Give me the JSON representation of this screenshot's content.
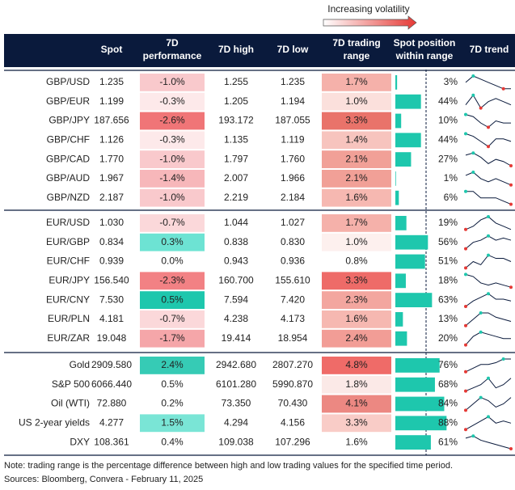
{
  "legend": {
    "label": "Increasing volatility"
  },
  "header": {
    "columns": [
      [
        "Spot"
      ],
      [
        "7D",
        "performance"
      ],
      [
        "7D high"
      ],
      [
        "7D low"
      ],
      [
        "7D trading",
        "range"
      ],
      [
        "Spot position",
        "within range"
      ],
      [
        "7D trend"
      ]
    ]
  },
  "groups": [
    {
      "rows": [
        {
          "name": "GBP/USD",
          "spot": "1.235",
          "perf": "-1.0%",
          "perf_color": "#f9c9cc",
          "high": "1.255",
          "low": "1.235",
          "range": "1.7%",
          "range_color": "#f5b1aa",
          "position": {
            "value": 3,
            "label": "3%"
          },
          "trend": [
            6,
            8,
            7,
            6,
            5,
            4,
            4
          ]
        },
        {
          "name": "GBP/EUR",
          "spot": "1.199",
          "perf": "-0.3%",
          "perf_color": "#fde9ea",
          "high": "1.205",
          "low": "1.194",
          "range": "1.0%",
          "range_color": "#fbe0dc",
          "position": {
            "value": 44,
            "label": "44%"
          },
          "trend": [
            3,
            6,
            2,
            4,
            5,
            4,
            3
          ]
        },
        {
          "name": "GBP/JPY",
          "spot": "187.656",
          "perf": "-2.6%",
          "perf_color": "#f07577",
          "high": "193.172",
          "low": "187.055",
          "range": "3.3%",
          "range_color": "#e9736a",
          "position": {
            "value": 10,
            "label": "10%"
          },
          "trend": [
            7,
            6,
            3,
            1,
            4,
            3,
            3
          ]
        },
        {
          "name": "GBP/CHF",
          "spot": "1.126",
          "perf": "-0.3%",
          "perf_color": "#fde9ea",
          "high": "1.135",
          "low": "1.119",
          "range": "1.4%",
          "range_color": "#f7c4be",
          "position": {
            "value": 44,
            "label": "44%"
          },
          "trend": [
            6,
            5,
            3,
            1,
            4,
            4,
            3
          ]
        },
        {
          "name": "GBP/CAD",
          "spot": "1.770",
          "perf": "-1.0%",
          "perf_color": "#f9c9cc",
          "high": "1.797",
          "low": "1.760",
          "range": "2.1%",
          "range_color": "#f1a097",
          "position": {
            "value": 27,
            "label": "27%"
          },
          "trend": [
            7,
            8,
            6,
            3,
            5,
            4,
            2
          ]
        },
        {
          "name": "GBP/AUD",
          "spot": "1.967",
          "perf": "-1.4%",
          "perf_color": "#f7b7ba",
          "high": "2.007",
          "low": "1.966",
          "range": "2.1%",
          "range_color": "#f1a097",
          "position": {
            "value": 1,
            "label": "1%"
          },
          "trend": [
            7,
            8,
            6,
            5,
            6,
            5,
            4
          ]
        },
        {
          "name": "GBP/NZD",
          "spot": "2.187",
          "perf": "-1.0%",
          "perf_color": "#f9c9cc",
          "high": "2.219",
          "low": "2.184",
          "range": "1.6%",
          "range_color": "#f6b8b1",
          "position": {
            "value": 6,
            "label": "6%"
          },
          "trend": [
            8,
            8,
            6,
            6,
            6,
            5,
            4
          ]
        }
      ]
    },
    {
      "rows": [
        {
          "name": "EUR/USD",
          "spot": "1.030",
          "perf": "-0.7%",
          "perf_color": "#fbd8da",
          "high": "1.044",
          "low": "1.027",
          "range": "1.7%",
          "range_color": "#f5b1aa",
          "position": {
            "value": 19,
            "label": "19%"
          },
          "trend": [
            4,
            5,
            7,
            8,
            6,
            5,
            4
          ]
        },
        {
          "name": "EUR/GBP",
          "spot": "0.834",
          "perf": "0.3%",
          "perf_color": "#6de3d3",
          "high": "0.838",
          "low": "0.830",
          "range": "1.0%",
          "range_color": "#fdf0ee",
          "position": {
            "value": 56,
            "label": "56%"
          },
          "trend": [
            2,
            5,
            6,
            8,
            6,
            7,
            6
          ]
        },
        {
          "name": "EUR/CHF",
          "spot": "0.939",
          "perf": "0.0%",
          "perf_color": "#ffffff",
          "high": "0.943",
          "low": "0.936",
          "range": "0.8%",
          "range_color": "#ffffff",
          "position": {
            "value": 51,
            "label": "51%"
          },
          "trend": [
            3,
            5,
            4,
            7,
            6,
            6,
            5
          ]
        },
        {
          "name": "EUR/JPY",
          "spot": "156.540",
          "perf": "-2.3%",
          "perf_color": "#f28184",
          "high": "160.700",
          "low": "155.610",
          "range": "3.3%",
          "range_color": "#ee6b68",
          "position": {
            "value": 18,
            "label": "18%"
          },
          "trend": [
            8,
            7,
            4,
            3,
            4,
            3,
            2
          ]
        },
        {
          "name": "EUR/CNY",
          "spot": "7.530",
          "perf": "0.5%",
          "perf_color": "#1ec7ad",
          "high": "7.594",
          "low": "7.420",
          "range": "2.3%",
          "range_color": "#f3a69f",
          "position": {
            "value": 63,
            "label": "63%"
          },
          "trend": [
            2,
            5,
            7,
            9,
            6,
            6,
            5
          ]
        },
        {
          "name": "EUR/PLN",
          "spot": "4.181",
          "perf": "-0.7%",
          "perf_color": "#fbd8da",
          "high": "4.238",
          "low": "4.173",
          "range": "1.6%",
          "range_color": "#f6b8b1",
          "position": {
            "value": 13,
            "label": "13%"
          },
          "trend": [
            2,
            5,
            8,
            8,
            6,
            5,
            4
          ]
        },
        {
          "name": "EUR/ZAR",
          "spot": "19.048",
          "perf": "-1.7%",
          "perf_color": "#f5a6a9",
          "high": "19.414",
          "low": "18.954",
          "range": "2.4%",
          "range_color": "#f29d96",
          "position": {
            "value": 20,
            "label": "20%"
          },
          "trend": [
            2,
            6,
            8,
            7,
            6,
            5,
            5
          ]
        }
      ]
    },
    {
      "rows": [
        {
          "name": "Gold",
          "spot": "2909.580",
          "perf": "2.4%",
          "perf_color": "#36cbb5",
          "high": "2942.680",
          "low": "2807.270",
          "range": "4.8%",
          "range_color": "#ef6b68",
          "position": {
            "value": 76,
            "label": "76%"
          },
          "trend": [
            2,
            4,
            6,
            6,
            7,
            9,
            9
          ]
        },
        {
          "name": "S&P 500",
          "spot": "6066.440",
          "perf": "0.5%",
          "perf_color": "#ffffff",
          "high": "6101.280",
          "low": "5990.870",
          "range": "1.8%",
          "range_color": "#fbe9e7",
          "position": {
            "value": 68,
            "label": "68%"
          },
          "trend": [
            3,
            4,
            5,
            7,
            4,
            5,
            7
          ]
        },
        {
          "name": "Oil (WTI)",
          "spot": "72.880",
          "perf": "0.2%",
          "perf_color": "#ffffff",
          "high": "73.350",
          "low": "70.430",
          "range": "4.1%",
          "range_color": "#ec8882",
          "position": {
            "value": 84,
            "label": "84%"
          },
          "trend": [
            3,
            5,
            7,
            6,
            4,
            5,
            7
          ]
        },
        {
          "name": "US 2-year yields",
          "spot": "4.277",
          "perf": "1.5%",
          "perf_color": "#7ae5d6",
          "high": "4.294",
          "low": "4.156",
          "range": "3.3%",
          "range_color": "#f9ccc7",
          "position": {
            "value": 88,
            "label": "88%"
          },
          "trend": [
            2,
            4,
            6,
            8,
            5,
            6,
            5
          ]
        },
        {
          "name": "DXY",
          "spot": "108.361",
          "perf": "0.4%",
          "perf_color": "#ffffff",
          "high": "109.038",
          "low": "107.296",
          "range": "1.6%",
          "range_color": "#ffffff",
          "position": {
            "value": 61,
            "label": "61%"
          },
          "trend": [
            7,
            8,
            6,
            5,
            4,
            3,
            2
          ]
        }
      ]
    }
  ],
  "footer": {
    "note": "Note: trading range is the percentage difference between high and low trading values for the specified time period.",
    "source": "Sources: Bloomberg, Convera - February 11, 2025"
  }
}
